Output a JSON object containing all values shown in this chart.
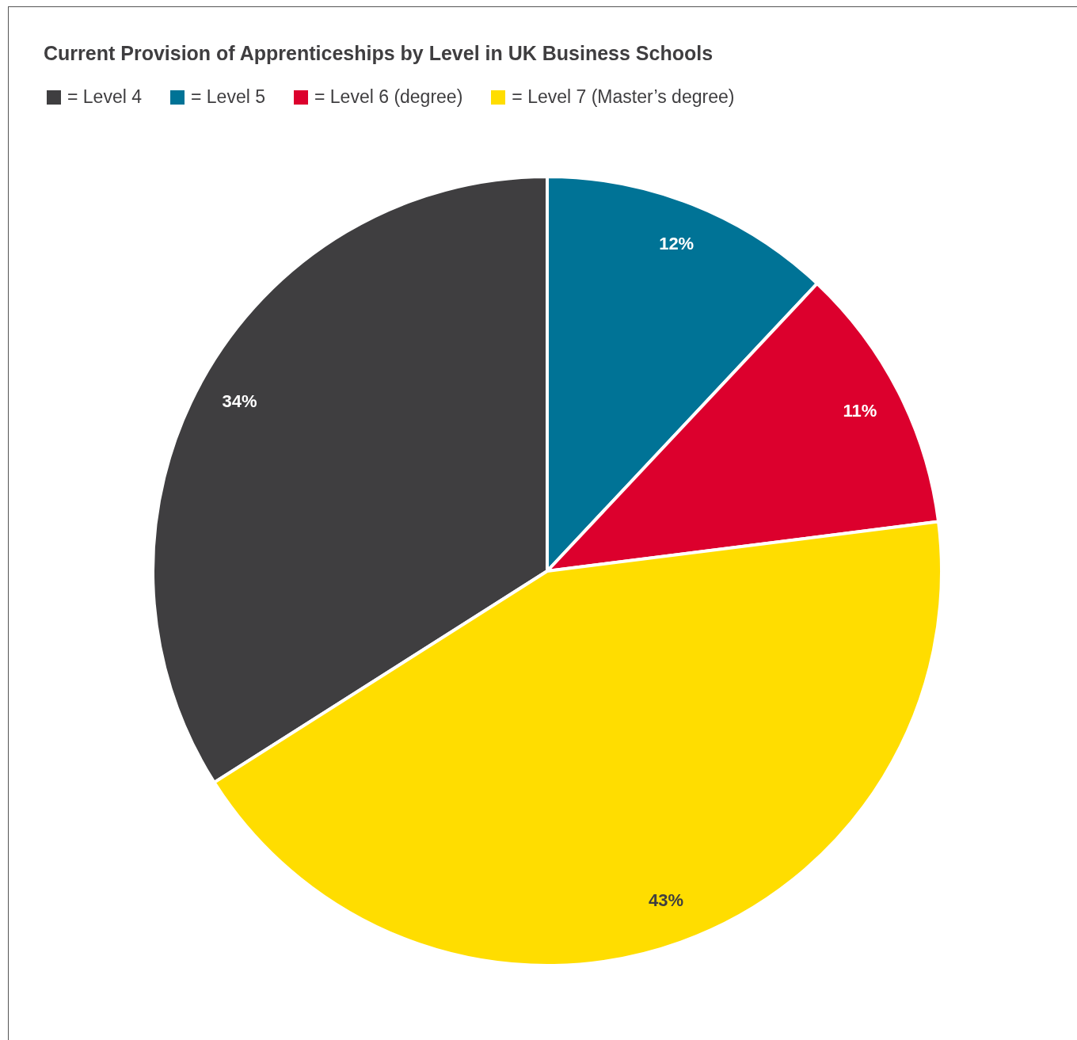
{
  "chart_data": {
    "type": "pie",
    "title": "Current Provision of Apprenticeships by Level in UK Business Schools",
    "categories": [
      "= Level 4",
      "= Level 5",
      "= Level 6 (degree)",
      "= Level 7 (Master’s degree)"
    ],
    "values": [
      34,
      12,
      11,
      43
    ],
    "colors": [
      "#3f3e40",
      "#007396",
      "#dc002d",
      "#ffdd00"
    ],
    "value_labels": [
      "34%",
      "12%",
      "11%",
      "43%"
    ],
    "legend": "top left"
  }
}
